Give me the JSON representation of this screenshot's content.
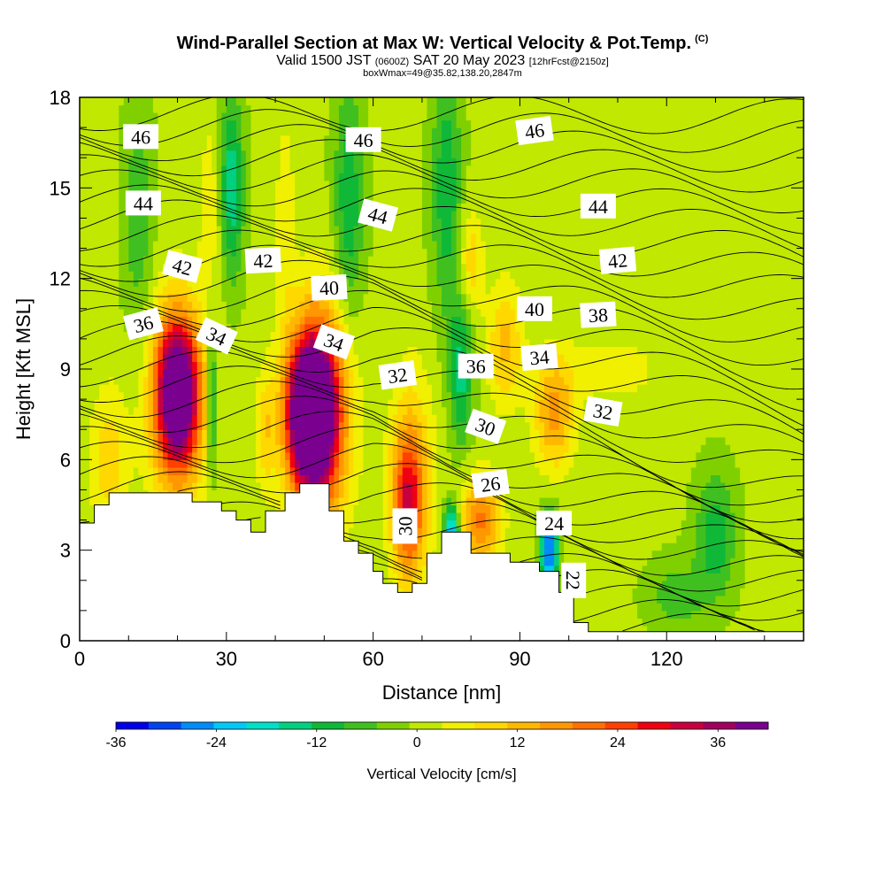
{
  "header": {
    "title": "Wind-Parallel Section at Max W: Vertical Velocity & Pot.Temp.",
    "copyright": "(C)",
    "valid_main": "Valid 1500 JST",
    "valid_z": "(0600Z)",
    "valid_date": "SAT 20 May 2023",
    "fcst": "[12hrFcst@2150z]",
    "box_info": "boxWmax=49@35.82,138.20,2847m"
  },
  "chart_data": {
    "type": "heatmap",
    "xlabel": "Distance [nm]",
    "ylabel": "Height [Kft MSL]",
    "xlim": [
      0,
      148
    ],
    "ylim": [
      0,
      18
    ],
    "x_ticks": [
      "0",
      "30",
      "60",
      "90",
      "120"
    ],
    "x_tick_values": [
      0,
      30,
      60,
      90,
      120
    ],
    "y_ticks": [
      "0",
      "3",
      "6",
      "9",
      "12",
      "15",
      "18"
    ],
    "y_tick_values": [
      0,
      3,
      6,
      9,
      12,
      15,
      18
    ],
    "colorbar": {
      "label": "Vertical Velocity [cm/s]",
      "ticks": [
        "-36",
        "-24",
        "-12",
        "0",
        "12",
        "24",
        "36"
      ],
      "tick_values": [
        -36,
        -24,
        -12,
        0,
        12,
        24,
        36
      ],
      "range": [
        -36,
        42
      ],
      "colors": [
        "#0000e8",
        "#0044f0",
        "#008cf8",
        "#00c8f8",
        "#00e0c8",
        "#00d080",
        "#10b838",
        "#40c020",
        "#80d000",
        "#c0e800",
        "#f0f000",
        "#ffd800",
        "#ffb800",
        "#ff9800",
        "#ff7000",
        "#ff4000",
        "#f00010",
        "#c80040",
        "#a00060",
        "#7a0090"
      ]
    },
    "terrain_kft": [
      [
        0,
        3.9
      ],
      [
        3,
        3.9
      ],
      [
        3,
        4.5
      ],
      [
        6,
        4.5
      ],
      [
        6,
        4.9
      ],
      [
        23,
        4.9
      ],
      [
        23,
        4.6
      ],
      [
        29,
        4.6
      ],
      [
        29,
        4.3
      ],
      [
        32,
        4.3
      ],
      [
        32,
        4.0
      ],
      [
        35,
        4.0
      ],
      [
        35,
        3.6
      ],
      [
        38,
        3.6
      ],
      [
        38,
        4.3
      ],
      [
        42,
        4.3
      ],
      [
        42,
        4.9
      ],
      [
        45,
        4.9
      ],
      [
        45,
        5.2
      ],
      [
        51,
        5.2
      ],
      [
        51,
        4.3
      ],
      [
        54,
        4.3
      ],
      [
        54,
        3.3
      ],
      [
        57,
        3.3
      ],
      [
        57,
        2.9
      ],
      [
        60,
        2.9
      ],
      [
        60,
        2.3
      ],
      [
        62,
        2.3
      ],
      [
        62,
        1.9
      ],
      [
        65,
        1.9
      ],
      [
        65,
        1.6
      ],
      [
        68,
        1.6
      ],
      [
        68,
        1.9
      ],
      [
        71,
        1.9
      ],
      [
        71,
        2.9
      ],
      [
        74,
        2.9
      ],
      [
        74,
        3.6
      ],
      [
        80,
        3.6
      ],
      [
        80,
        2.9
      ],
      [
        88,
        2.9
      ],
      [
        88,
        2.6
      ],
      [
        94,
        2.6
      ],
      [
        94,
        2.3
      ],
      [
        98,
        2.3
      ],
      [
        98,
        1.6
      ],
      [
        101,
        1.6
      ],
      [
        101,
        0.6
      ],
      [
        104,
        0.6
      ],
      [
        104,
        0.3
      ],
      [
        148,
        0.3
      ]
    ],
    "w_features": [
      {
        "x": 20,
        "y": 8.2,
        "w": 42,
        "rx": 4.0,
        "ry": 2.2
      },
      {
        "x": 47,
        "y": 7.5,
        "w": 49,
        "rx": 4.5,
        "ry": 2.3
      },
      {
        "x": 49,
        "y": 7.6,
        "w": 30,
        "rx": 6.0,
        "ry": 3.6
      },
      {
        "x": 20,
        "y": 8.0,
        "w": 18,
        "rx": 6.0,
        "ry": 3.5
      },
      {
        "x": 67,
        "y": 4.5,
        "w": 22,
        "rx": 3.0,
        "ry": 2.2
      },
      {
        "x": 68,
        "y": 5.5,
        "w": 12,
        "rx": 4.5,
        "ry": 3.5
      },
      {
        "x": 82,
        "y": 4.0,
        "w": 20,
        "rx": 4.0,
        "ry": 1.5
      },
      {
        "x": 87,
        "y": 9.8,
        "w": 12,
        "rx": 3.5,
        "ry": 2.0
      },
      {
        "x": 97,
        "y": 7.5,
        "w": 16,
        "rx": 4.0,
        "ry": 1.8
      },
      {
        "x": 108,
        "y": 9.0,
        "w": 5,
        "rx": 12,
        "ry": 1.2
      },
      {
        "x": 6,
        "y": 6.0,
        "w": 9,
        "rx": 4,
        "ry": 2.5
      },
      {
        "x": 38,
        "y": 7.0,
        "w": 9,
        "rx": 2,
        "ry": 2.0
      },
      {
        "x": 27,
        "y": 14.5,
        "w": 6,
        "rx": 2.5,
        "ry": 3.0
      },
      {
        "x": 42,
        "y": 14.0,
        "w": 6,
        "rx": 2.0,
        "ry": 3.5
      },
      {
        "x": 80,
        "y": 12.5,
        "w": 10,
        "rx": 2.5,
        "ry": 1.8
      },
      {
        "x": 31,
        "y": 15.0,
        "w": -16,
        "rx": 2.5,
        "ry": 3.0
      },
      {
        "x": 27,
        "y": 8.0,
        "w": -16,
        "rx": 1.0,
        "ry": 2.5
      },
      {
        "x": 76,
        "y": 3.5,
        "w": -28,
        "rx": 1.5,
        "ry": 1.0
      },
      {
        "x": 96,
        "y": 3.0,
        "w": -30,
        "rx": 1.8,
        "ry": 1.2
      },
      {
        "x": 78,
        "y": 9.0,
        "w": -14,
        "rx": 2.5,
        "ry": 2.5
      },
      {
        "x": 55,
        "y": 14.5,
        "w": -12,
        "rx": 3.0,
        "ry": 4.0
      },
      {
        "x": 75,
        "y": 15.0,
        "w": -12,
        "rx": 3.0,
        "ry": 4.0
      },
      {
        "x": 130,
        "y": 3.5,
        "w": -12,
        "rx": 4.0,
        "ry": 2.0
      },
      {
        "x": 12,
        "y": 14.0,
        "w": -8,
        "rx": 3.0,
        "ry": 4.0
      },
      {
        "x": 122,
        "y": 1.5,
        "w": -7,
        "rx": 6.0,
        "ry": 1.2
      }
    ],
    "isentrope_labels": [
      {
        "text": "46",
        "x": 12.5,
        "y": 16.7,
        "rot": 0
      },
      {
        "text": "46",
        "x": 58,
        "y": 16.6,
        "rot": 0
      },
      {
        "text": "46",
        "x": 93,
        "y": 16.9,
        "rot": -8
      },
      {
        "text": "44",
        "x": 13,
        "y": 14.5,
        "rot": 0
      },
      {
        "text": "44",
        "x": 61,
        "y": 14.1,
        "rot": 15
      },
      {
        "text": "44",
        "x": 106,
        "y": 14.4,
        "rot": 0
      },
      {
        "text": "42",
        "x": 21,
        "y": 12.4,
        "rot": 15
      },
      {
        "text": "42",
        "x": 37.5,
        "y": 12.6,
        "rot": -3
      },
      {
        "text": "42",
        "x": 110,
        "y": 12.6,
        "rot": -5
      },
      {
        "text": "40",
        "x": 51,
        "y": 11.7,
        "rot": -3
      },
      {
        "text": "40",
        "x": 93,
        "y": 11.0,
        "rot": 0
      },
      {
        "text": "38",
        "x": 106,
        "y": 10.8,
        "rot": -3
      },
      {
        "text": "36",
        "x": 13,
        "y": 10.5,
        "rot": -15
      },
      {
        "text": "36",
        "x": 81,
        "y": 9.1,
        "rot": 0
      },
      {
        "text": "34",
        "x": 28,
        "y": 10.1,
        "rot": 25
      },
      {
        "text": "34",
        "x": 52,
        "y": 9.9,
        "rot": 20
      },
      {
        "text": "34",
        "x": 94,
        "y": 9.4,
        "rot": -5
      },
      {
        "text": "32",
        "x": 65,
        "y": 8.8,
        "rot": -8
      },
      {
        "text": "32",
        "x": 107,
        "y": 7.6,
        "rot": 10
      },
      {
        "text": "30",
        "x": 83,
        "y": 7.1,
        "rot": 20
      },
      {
        "text": "30",
        "x": 66.5,
        "y": 3.8,
        "rot": -90
      },
      {
        "text": "26",
        "x": 84,
        "y": 5.2,
        "rot": -8
      },
      {
        "text": "24",
        "x": 97,
        "y": 3.9,
        "rot": 0
      },
      {
        "text": "22",
        "x": 101,
        "y": 2.0,
        "rot": 90
      }
    ]
  }
}
